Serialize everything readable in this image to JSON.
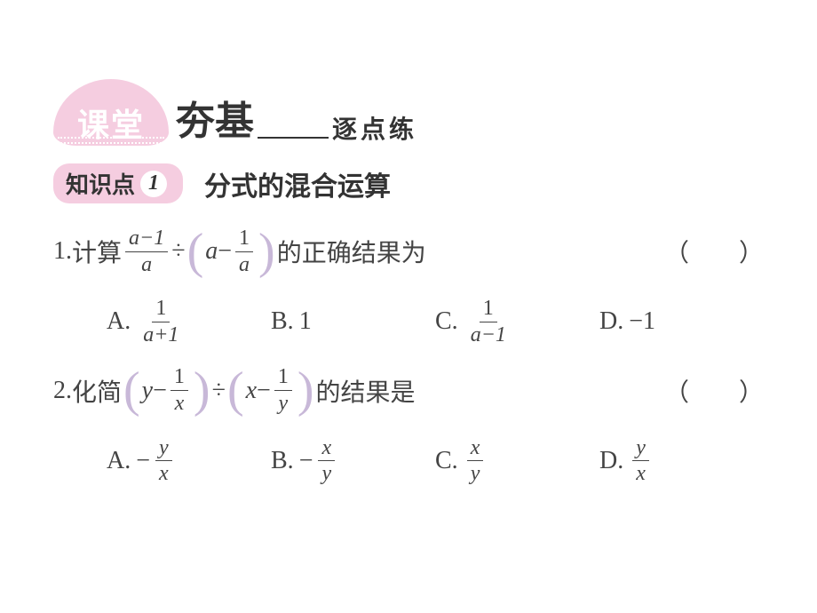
{
  "header": {
    "badge_text": "课堂",
    "title_main": "夯基",
    "title_sub": "逐点练",
    "badge_bg": "#f5cde0",
    "badge_fg": "#ffffff"
  },
  "knowledge": {
    "label": "知识点",
    "number": "1",
    "title": "分式的混合运算",
    "badge_bg": "#f5cde0",
    "circle_bg": "#ffffff"
  },
  "questions": [
    {
      "number": "1.",
      "prefix": "计算",
      "expression": {
        "frac1_num": "a−1",
        "frac1_den": "a",
        "op": "÷",
        "inner_left": "a",
        "inner_op": "−",
        "inner_frac_num": "1",
        "inner_frac_den": "a"
      },
      "suffix": "的正确结果为",
      "paren": "（　　）",
      "options": [
        {
          "label": "A.",
          "type": "frac",
          "num": "1",
          "den": "a+1"
        },
        {
          "label": "B.",
          "type": "plain",
          "value": "1"
        },
        {
          "label": "C.",
          "type": "frac",
          "num": "1",
          "den": "a−1"
        },
        {
          "label": "D.",
          "type": "plain",
          "value": "−1"
        }
      ]
    },
    {
      "number": "2.",
      "prefix": "化简",
      "expression": {
        "group1_left": "y",
        "group1_op": "−",
        "group1_frac_num": "1",
        "group1_frac_den": "x",
        "op": "÷",
        "group2_left": "x",
        "group2_op": "−",
        "group2_frac_num": "1",
        "group2_frac_den": "y"
      },
      "suffix": "的结果是",
      "paren": "（　　）",
      "options": [
        {
          "label": "A.",
          "type": "negfrac",
          "num": "y",
          "den": "x"
        },
        {
          "label": "B.",
          "type": "negfrac",
          "num": "x",
          "den": "y"
        },
        {
          "label": "C.",
          "type": "frac",
          "num": "x",
          "den": "y"
        },
        {
          "label": "D.",
          "type": "frac",
          "num": "y",
          "den": "x"
        }
      ]
    }
  ],
  "colors": {
    "text": "#444444",
    "paren_color": "#c8b8d8",
    "background": "#ffffff"
  },
  "typography": {
    "body_fontsize": 28,
    "title_fontsize": 44,
    "sub_fontsize": 28,
    "badge_fontsize": 36,
    "knowledge_fontsize": 30,
    "frac_fontsize": 24
  }
}
